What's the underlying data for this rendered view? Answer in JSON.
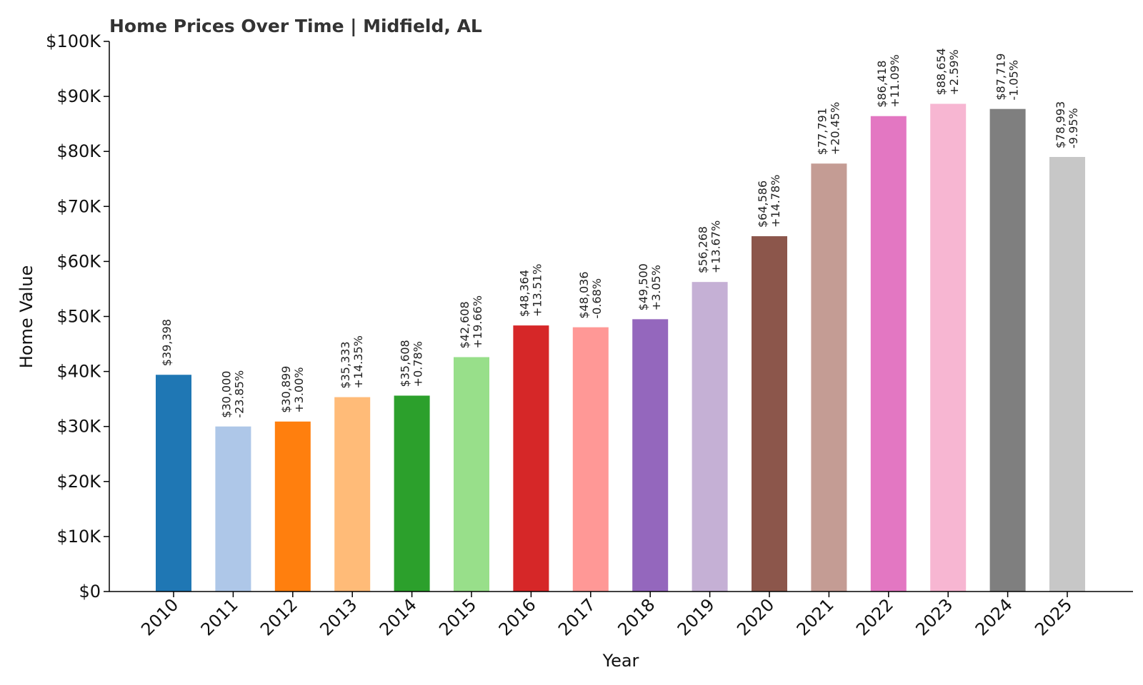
{
  "chart_data": {
    "type": "bar",
    "title": "Home Prices Over Time | Midfield, AL",
    "xlabel": "Year",
    "ylabel": "Home Value",
    "ylim": [
      0,
      100000
    ],
    "yticks": [
      {
        "value": 0,
        "label": "$0"
      },
      {
        "value": 10000,
        "label": "$10K"
      },
      {
        "value": 20000,
        "label": "$20K"
      },
      {
        "value": 30000,
        "label": "$30K"
      },
      {
        "value": 40000,
        "label": "$40K"
      },
      {
        "value": 50000,
        "label": "$50K"
      },
      {
        "value": 60000,
        "label": "$60K"
      },
      {
        "value": 70000,
        "label": "$70K"
      },
      {
        "value": 80000,
        "label": "$80K"
      },
      {
        "value": 90000,
        "label": "$90K"
      },
      {
        "value": 100000,
        "label": "$100K"
      }
    ],
    "grid": false,
    "legend": "none",
    "categories": [
      "2010",
      "2011",
      "2012",
      "2013",
      "2014",
      "2015",
      "2016",
      "2017",
      "2018",
      "2019",
      "2020",
      "2021",
      "2022",
      "2023",
      "2024",
      "2025"
    ],
    "values": [
      39398,
      30000,
      30899,
      35333,
      35608,
      42608,
      48364,
      48036,
      49500,
      56268,
      64586,
      77791,
      86418,
      88654,
      87719,
      78993
    ],
    "value_labels": [
      "$39,398",
      "$30,000",
      "$30,899",
      "$35,333",
      "$35,608",
      "$42,608",
      "$48,364",
      "$48,036",
      "$49,500",
      "$56,268",
      "$64,586",
      "$77,791",
      "$86,418",
      "$88,654",
      "$87,719",
      "$78,993"
    ],
    "change_labels": [
      "",
      "-23.85%",
      "+3.00%",
      "+14.35%",
      "+0.78%",
      "+19.66%",
      "+13.51%",
      "-0.68%",
      "+3.05%",
      "+13.67%",
      "+14.78%",
      "+20.45%",
      "+11.09%",
      "+2.59%",
      "-1.05%",
      "-9.95%"
    ],
    "colors": [
      "#1f77b4",
      "#aec7e8",
      "#ff7f0e",
      "#ffbb78",
      "#2ca02c",
      "#98df8a",
      "#d62728",
      "#ff9896",
      "#9467bd",
      "#c5b0d5",
      "#8c564b",
      "#c49c94",
      "#e377c2",
      "#f7b6d2",
      "#7f7f7f",
      "#c7c7c7"
    ]
  }
}
